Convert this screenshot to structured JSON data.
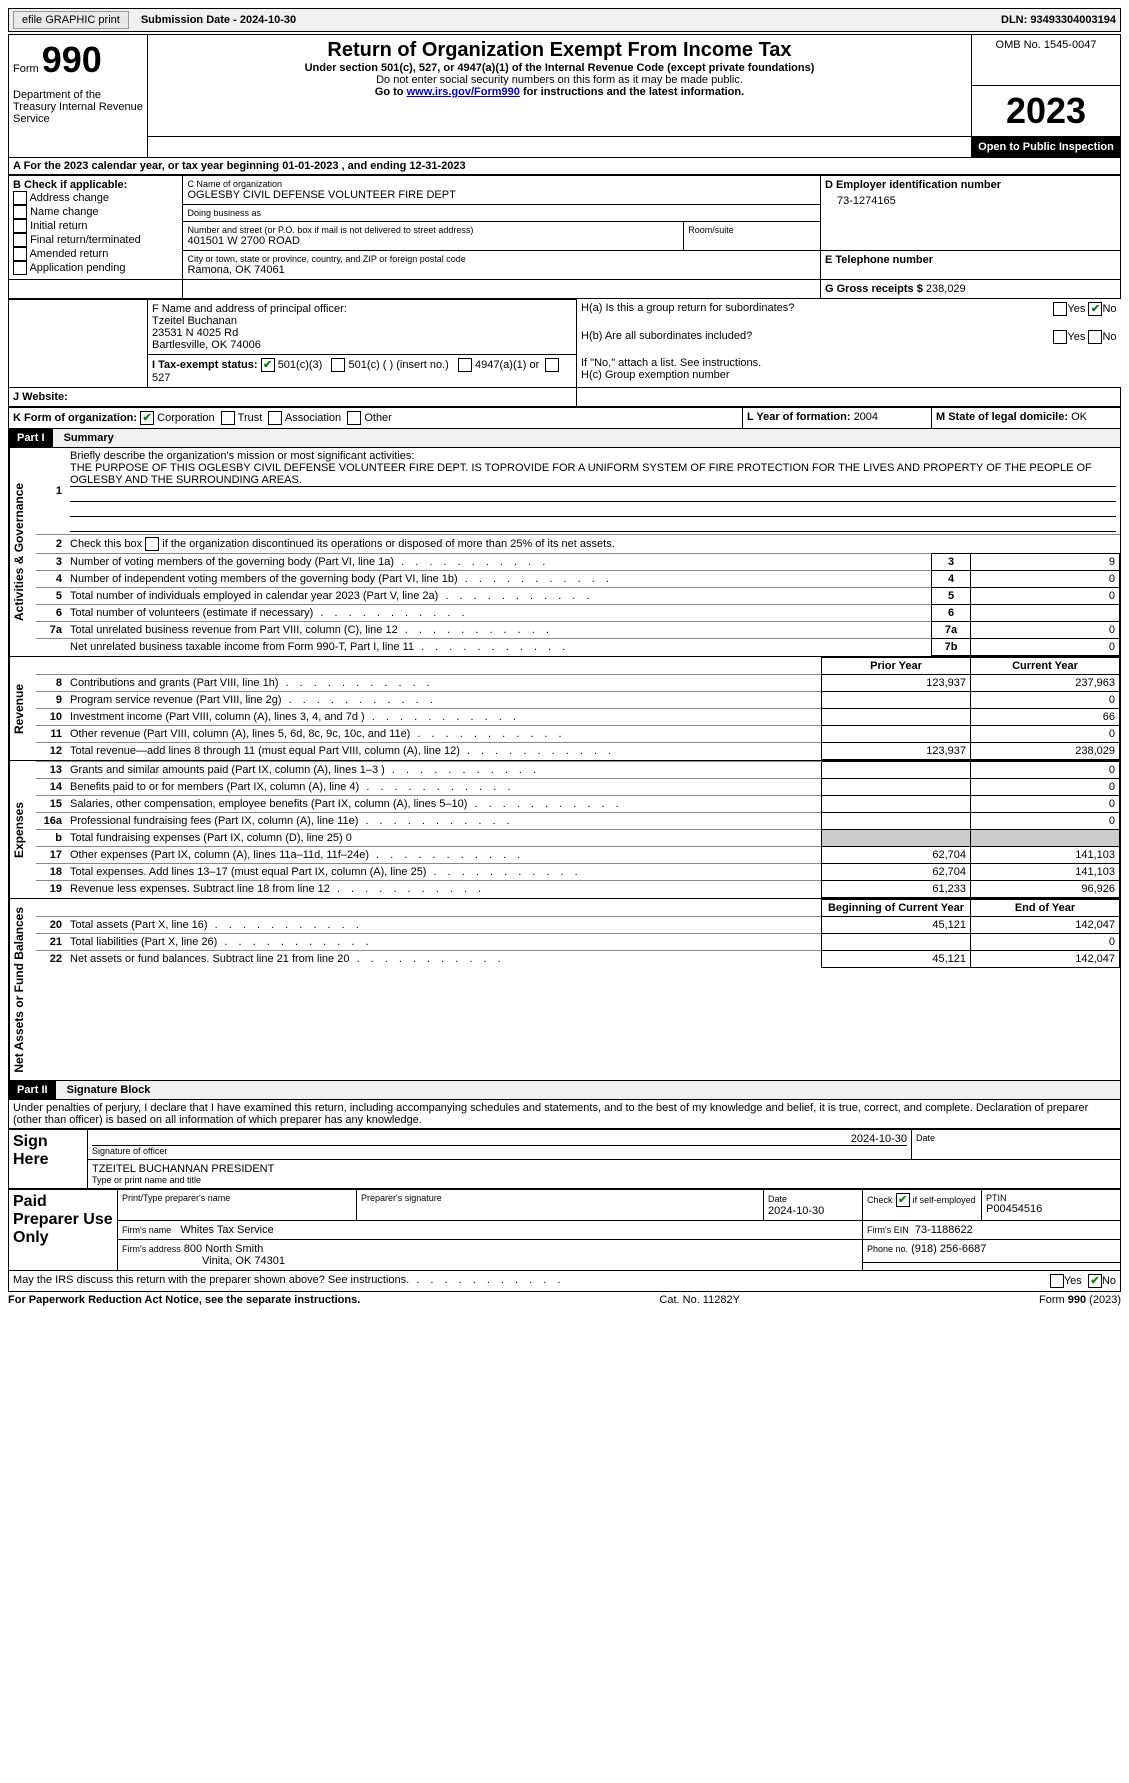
{
  "topbar": {
    "efile_label": "efile GRAPHIC print",
    "submission_label": "Submission Date - 2024-10-30",
    "dln_label": "DLN: 93493304003194"
  },
  "header": {
    "form_prefix": "Form",
    "form_number": "990",
    "dept": "Department of the Treasury Internal Revenue Service",
    "title": "Return of Organization Exempt From Income Tax",
    "subtitle1": "Under section 501(c), 527, or 4947(a)(1) of the Internal Revenue Code (except private foundations)",
    "subtitle2": "Do not enter social security numbers on this form as it may be made public.",
    "subtitle3_prefix": "Go to ",
    "subtitle3_link": "www.irs.gov/Form990",
    "subtitle3_suffix": " for instructions and the latest information.",
    "omb": "OMB No. 1545-0047",
    "year": "2023",
    "open_inspection": "Open to Public Inspection"
  },
  "period": {
    "a_label": "A For the 2023 calendar year, or tax year beginning ",
    "begin": "01-01-2023",
    "middle": " , and ending ",
    "end": "12-31-2023"
  },
  "box_b": {
    "label": "B Check if applicable:",
    "opts": [
      "Address change",
      "Name change",
      "Initial return",
      "Final return/terminated",
      "Amended return",
      "Application pending"
    ]
  },
  "box_c": {
    "name_label": "C Name of organization",
    "name": "OGLESBY CIVIL DEFENSE VOLUNTEER FIRE DEPT",
    "dba_label": "Doing business as",
    "street_label": "Number and street (or P.O. box if mail is not delivered to street address)",
    "street": "401501 W 2700 ROAD",
    "room_label": "Room/suite",
    "city_label": "City or town, state or province, country, and ZIP or foreign postal code",
    "city": "Ramona, OK  74061"
  },
  "box_d": {
    "label": "D Employer identification number",
    "value": "73-1274165"
  },
  "box_e": {
    "label": "E Telephone number"
  },
  "box_g": {
    "label": "G Gross receipts $ ",
    "value": "238,029"
  },
  "box_f": {
    "label": "F  Name and address of principal officer:",
    "line1": "Tzeitel Buchanan",
    "line2": "23531 N 4025 Rd",
    "line3": "Bartlesville, OK  74006"
  },
  "box_h": {
    "ha_label": "H(a)  Is this a group return for subordinates?",
    "hb_label": "H(b)  Are all subordinates included?",
    "hb_note": "If \"No,\" attach a list. See instructions.",
    "hc_label": "H(c)  Group exemption number ",
    "yes": "Yes",
    "no": "No"
  },
  "box_i": {
    "label": "I  Tax-exempt status:",
    "opt1": "501(c)(3)",
    "opt2": "501(c) (  ) (insert no.)",
    "opt3": "4947(a)(1) or",
    "opt4": "527"
  },
  "box_j": {
    "label": "J  Website: "
  },
  "box_k": {
    "label": "K Form of organization:",
    "opts": [
      "Corporation",
      "Trust",
      "Association",
      "Other"
    ]
  },
  "box_l": {
    "label": "L Year of formation: ",
    "value": "2004"
  },
  "box_m": {
    "label": "M State of legal domicile: ",
    "value": "OK"
  },
  "part1": {
    "header": "Part I",
    "title": "Summary",
    "section_governance": "Activities & Governance",
    "section_revenue": "Revenue",
    "section_expenses": "Expenses",
    "section_netassets": "Net Assets or Fund Balances",
    "line1_label": "Briefly describe the organization's mission or most significant activities:",
    "line1_text": "THE PURPOSE OF THIS OGLESBY CIVIL DEFENSE VOLUNTEER FIRE DEPT. IS TOPROVIDE FOR A UNIFORM SYSTEM OF FIRE PROTECTION FOR THE LIVES AND PROPERTY OF THE PEOPLE OF OGLESBY AND THE SURROUNDING AREAS.",
    "line2_label": "Check this box ",
    "line2_suffix": " if the organization discontinued its operations or disposed of more than 25% of its net assets.",
    "rows_gov": [
      {
        "n": "3",
        "label": "Number of voting members of the governing body (Part VI, line 1a)",
        "box": "3",
        "val": "9"
      },
      {
        "n": "4",
        "label": "Number of independent voting members of the governing body (Part VI, line 1b)",
        "box": "4",
        "val": "0"
      },
      {
        "n": "5",
        "label": "Total number of individuals employed in calendar year 2023 (Part V, line 2a)",
        "box": "5",
        "val": "0"
      },
      {
        "n": "6",
        "label": "Total number of volunteers (estimate if necessary)",
        "box": "6",
        "val": ""
      },
      {
        "n": "7a",
        "label": "Total unrelated business revenue from Part VIII, column (C), line 12",
        "box": "7a",
        "val": "0"
      },
      {
        "n": "",
        "label": "Net unrelated business taxable income from Form 990-T, Part I, line 11",
        "box": "7b",
        "val": "0"
      }
    ],
    "col_prior": "Prior Year",
    "col_current": "Current Year",
    "rows_rev": [
      {
        "n": "8",
        "label": "Contributions and grants (Part VIII, line 1h)",
        "prior": "123,937",
        "cur": "237,963"
      },
      {
        "n": "9",
        "label": "Program service revenue (Part VIII, line 2g)",
        "prior": "",
        "cur": "0"
      },
      {
        "n": "10",
        "label": "Investment income (Part VIII, column (A), lines 3, 4, and 7d )",
        "prior": "",
        "cur": "66"
      },
      {
        "n": "11",
        "label": "Other revenue (Part VIII, column (A), lines 5, 6d, 8c, 9c, 10c, and 11e)",
        "prior": "",
        "cur": "0"
      },
      {
        "n": "12",
        "label": "Total revenue—add lines 8 through 11 (must equal Part VIII, column (A), line 12)",
        "prior": "123,937",
        "cur": "238,029"
      }
    ],
    "rows_exp": [
      {
        "n": "13",
        "label": "Grants and similar amounts paid (Part IX, column (A), lines 1–3 )",
        "prior": "",
        "cur": "0"
      },
      {
        "n": "14",
        "label": "Benefits paid to or for members (Part IX, column (A), line 4)",
        "prior": "",
        "cur": "0"
      },
      {
        "n": "15",
        "label": "Salaries, other compensation, employee benefits (Part IX, column (A), lines 5–10)",
        "prior": "",
        "cur": "0"
      },
      {
        "n": "16a",
        "label": "Professional fundraising fees (Part IX, column (A), line 11e)",
        "prior": "",
        "cur": "0"
      },
      {
        "n": "b",
        "label": "Total fundraising expenses (Part IX, column (D), line 25) 0",
        "gray": true
      },
      {
        "n": "17",
        "label": "Other expenses (Part IX, column (A), lines 11a–11d, 11f–24e)",
        "prior": "62,704",
        "cur": "141,103"
      },
      {
        "n": "18",
        "label": "Total expenses. Add lines 13–17 (must equal Part IX, column (A), line 25)",
        "prior": "62,704",
        "cur": "141,103"
      },
      {
        "n": "19",
        "label": "Revenue less expenses. Subtract line 18 from line 12",
        "prior": "61,233",
        "cur": "96,926"
      }
    ],
    "col_begin": "Beginning of Current Year",
    "col_end": "End of Year",
    "rows_net": [
      {
        "n": "20",
        "label": "Total assets (Part X, line 16)",
        "prior": "45,121",
        "cur": "142,047"
      },
      {
        "n": "21",
        "label": "Total liabilities (Part X, line 26)",
        "prior": "",
        "cur": "0"
      },
      {
        "n": "22",
        "label": "Net assets or fund balances. Subtract line 21 from line 20",
        "prior": "45,121",
        "cur": "142,047"
      }
    ]
  },
  "part2": {
    "header": "Part II",
    "title": "Signature Block",
    "perjury": "Under penalties of perjury, I declare that I have examined this return, including accompanying schedules and statements, and to the best of my knowledge and belief, it is true, correct, and complete. Declaration of preparer (other than officer) is based on all information of which preparer has any knowledge.",
    "sign_here": "Sign Here",
    "sig_date": "2024-10-30",
    "sig_officer_label": "Signature of officer",
    "officer_name": "TZEITEL BUCHANNAN  PRESIDENT",
    "officer_title_label": "Type or print name and title",
    "date_label": "Date",
    "paid_prep": "Paid Preparer Use Only",
    "print_name_label": "Print/Type preparer's name",
    "prep_sig_label": "Preparer's signature",
    "prep_date": "2024-10-30",
    "check_if_label": "Check",
    "self_emp": "if self-employed",
    "ptin_label": "PTIN",
    "ptin": "P00454516",
    "firm_name_label": "Firm's name",
    "firm_name": "Whites Tax Service",
    "firm_ein_label": "Firm's EIN",
    "firm_ein": "73-1188622",
    "firm_addr_label": "Firm's address",
    "firm_addr1": "800 North Smith",
    "firm_addr2": "Vinita, OK  74301",
    "phone_label": "Phone no.",
    "phone": "(918) 256-6687",
    "may_irs": "May the IRS discuss this return with the preparer shown above? See instructions."
  },
  "footer": {
    "paperwork": "For Paperwork Reduction Act Notice, see the separate instructions.",
    "cat": "Cat. No. 11282Y",
    "form": "Form 990 (2023)"
  }
}
